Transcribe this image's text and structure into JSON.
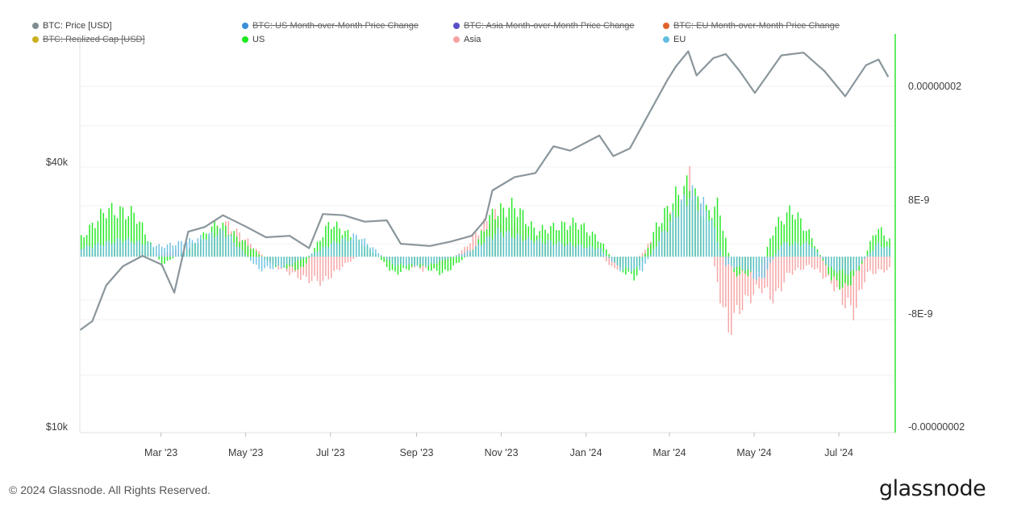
{
  "legend": [
    {
      "label": "BTC: Price [USD]",
      "color": "#7f8c91",
      "enabled": true
    },
    {
      "label": "BTC: US Month-over-Month Price Change",
      "color": "#3b8fd8",
      "enabled": false
    },
    {
      "label": "BTC: Asia Month-over-Month Price Change",
      "color": "#5a4fc4",
      "enabled": false
    },
    {
      "label": "BTC: EU Month-over-Month Price Change",
      "color": "#e0622a",
      "enabled": false
    },
    {
      "label": "BTC: Realized Cap [USD]",
      "color": "#c9b01e",
      "enabled": false
    },
    {
      "label": "US",
      "color": "#1ee81e",
      "enabled": true
    },
    {
      "label": "Asia",
      "color": "#f7a1a1",
      "enabled": true
    },
    {
      "label": "EU",
      "color": "#63bde0",
      "enabled": true
    }
  ],
  "footer": {
    "copyright": "© 2024 Glassnode. All Rights Reserved.",
    "logo": "glassnode"
  },
  "chart_data": {
    "type": "bar",
    "title": "",
    "x_axis": {
      "tick_labels": [
        "Mar '23",
        "May '23",
        "Jul '23",
        "Sep '23",
        "Nov '23",
        "Jan '24",
        "Mar '24",
        "May '24",
        "Jul '24"
      ],
      "range": [
        "2023-01-01",
        "2024-08-10"
      ]
    },
    "y_left": {
      "label": "",
      "scale": "log",
      "tick_labels": [
        "$40k",
        "$10k"
      ],
      "range": [
        10000,
        80000
      ]
    },
    "y_right": {
      "label": "",
      "tick_labels": [
        "0.00000002",
        "8E-9",
        "-8E-9",
        "-0.00000002"
      ],
      "range": [
        -2e-08,
        2.5e-08
      ]
    },
    "grid": true,
    "legend_position": "top",
    "price_series": {
      "name": "BTC: Price [USD]",
      "color": "#8a969c",
      "points": [
        [
          "2023-01-01",
          16600
        ],
        [
          "2023-01-10",
          17400
        ],
        [
          "2023-01-20",
          21000
        ],
        [
          "2023-02-01",
          23200
        ],
        [
          "2023-02-15",
          24500
        ],
        [
          "2023-03-01",
          23400
        ],
        [
          "2023-03-10",
          20200
        ],
        [
          "2023-03-20",
          27800
        ],
        [
          "2023-04-01",
          28500
        ],
        [
          "2023-04-14",
          30300
        ],
        [
          "2023-05-01",
          28500
        ],
        [
          "2023-05-15",
          27000
        ],
        [
          "2023-06-01",
          27200
        ],
        [
          "2023-06-15",
          25500
        ],
        [
          "2023-06-25",
          30500
        ],
        [
          "2023-07-10",
          30300
        ],
        [
          "2023-07-25",
          29300
        ],
        [
          "2023-08-10",
          29500
        ],
        [
          "2023-08-20",
          26100
        ],
        [
          "2023-09-10",
          25800
        ],
        [
          "2023-09-25",
          26400
        ],
        [
          "2023-10-10",
          27200
        ],
        [
          "2023-10-20",
          29600
        ],
        [
          "2023-10-25",
          34500
        ],
        [
          "2023-11-10",
          37000
        ],
        [
          "2023-11-25",
          37800
        ],
        [
          "2023-12-08",
          43500
        ],
        [
          "2023-12-20",
          42500
        ],
        [
          "2024-01-10",
          46000
        ],
        [
          "2024-01-20",
          41300
        ],
        [
          "2024-02-01",
          43000
        ],
        [
          "2024-02-15",
          51800
        ],
        [
          "2024-02-28",
          61500
        ],
        [
          "2024-03-05",
          66000
        ],
        [
          "2024-03-14",
          71500
        ],
        [
          "2024-03-20",
          63000
        ],
        [
          "2024-04-01",
          69000
        ],
        [
          "2024-04-10",
          70500
        ],
        [
          "2024-04-20",
          64500
        ],
        [
          "2024-05-01",
          57500
        ],
        [
          "2024-05-20",
          70000
        ],
        [
          "2024-06-05",
          71000
        ],
        [
          "2024-06-20",
          64500
        ],
        [
          "2024-07-05",
          56500
        ],
        [
          "2024-07-20",
          66500
        ],
        [
          "2024-07-29",
          68500
        ],
        [
          "2024-08-05",
          62500
        ]
      ]
    },
    "bar_series": [
      {
        "name": "US",
        "color": "#1ee81e",
        "note": "month-over-month change, right axis"
      },
      {
        "name": "Asia",
        "color": "#f7a1a1",
        "note": "month-over-month change, right axis"
      },
      {
        "name": "EU",
        "color": "#63bde0",
        "note": "month-over-month change, right axis"
      }
    ],
    "bar_anchors": {
      "US": [
        [
          "2023-01-01",
          2e-09
        ],
        [
          "2023-01-20",
          5.5e-09
        ],
        [
          "2023-02-10",
          5e-09
        ],
        [
          "2023-03-01",
          -1e-09
        ],
        [
          "2023-03-25",
          1.5e-09
        ],
        [
          "2023-04-10",
          4e-09
        ],
        [
          "2023-05-01",
          1.5e-09
        ],
        [
          "2023-05-20",
          -1e-09
        ],
        [
          "2023-06-10",
          -1.5e-09
        ],
        [
          "2023-06-30",
          4e-09
        ],
        [
          "2023-07-15",
          2.5e-09
        ],
        [
          "2023-08-01",
          5e-10
        ],
        [
          "2023-08-15",
          -2e-09
        ],
        [
          "2023-09-01",
          -1e-09
        ],
        [
          "2023-09-20",
          -2e-09
        ],
        [
          "2023-10-10",
          5e-10
        ],
        [
          "2023-10-25",
          5e-09
        ],
        [
          "2023-11-10",
          6e-09
        ],
        [
          "2023-11-25",
          3e-09
        ],
        [
          "2023-12-10",
          3.5e-09
        ],
        [
          "2023-12-25",
          4e-09
        ],
        [
          "2024-01-10",
          2e-09
        ],
        [
          "2024-01-25",
          -1.5e-09
        ],
        [
          "2024-02-05",
          -2.5e-09
        ],
        [
          "2024-02-20",
          3.5e-09
        ],
        [
          "2024-03-05",
          7e-09
        ],
        [
          "2024-03-15",
          8.5e-09
        ],
        [
          "2024-03-25",
          5e-09
        ],
        [
          "2024-04-05",
          6e-09
        ],
        [
          "2024-04-15",
          -2e-09
        ],
        [
          "2024-04-25",
          -2e-09
        ],
        [
          "2024-05-05",
          -1.5e-09
        ],
        [
          "2024-05-15",
          3.5e-09
        ],
        [
          "2024-05-28",
          5.5e-09
        ],
        [
          "2024-06-10",
          2.5e-09
        ],
        [
          "2024-06-25",
          -2.5e-09
        ],
        [
          "2024-07-05",
          -3.8e-09
        ],
        [
          "2024-07-15",
          -1.5e-09
        ],
        [
          "2024-07-28",
          3.5e-09
        ],
        [
          "2024-08-05",
          2e-09
        ]
      ],
      "Asia": [
        [
          "2023-01-01",
          0
        ],
        [
          "2023-02-01",
          1e-09
        ],
        [
          "2023-03-01",
          3e-10
        ],
        [
          "2023-04-01",
          1.5e-09
        ],
        [
          "2023-04-15",
          4e-09
        ],
        [
          "2023-05-01",
          2e-09
        ],
        [
          "2023-05-20",
          -1e-09
        ],
        [
          "2023-06-10",
          -2.5e-09
        ],
        [
          "2023-06-25",
          -3e-09
        ],
        [
          "2023-07-10",
          -1e-09
        ],
        [
          "2023-07-25",
          5e-10
        ],
        [
          "2023-08-15",
          -5e-10
        ],
        [
          "2023-09-05",
          -1.5e-09
        ],
        [
          "2023-09-20",
          -1e-09
        ],
        [
          "2023-10-05",
          1e-09
        ],
        [
          "2023-10-25",
          5e-09
        ],
        [
          "2023-11-10",
          3.5e-09
        ],
        [
          "2023-12-01",
          1.5e-09
        ],
        [
          "2023-12-20",
          1.5e-09
        ],
        [
          "2024-01-10",
          5e-10
        ],
        [
          "2024-01-20",
          -1.5e-09
        ],
        [
          "2024-02-05",
          -5e-10
        ],
        [
          "2024-02-20",
          2.5e-09
        ],
        [
          "2024-03-10",
          6.5e-09
        ],
        [
          "2024-03-15",
          9e-09
        ],
        [
          "2024-03-28",
          3e-09
        ],
        [
          "2024-04-05",
          -4e-09
        ],
        [
          "2024-04-12",
          -8.5e-09
        ],
        [
          "2024-04-20",
          -6e-09
        ],
        [
          "2024-05-05",
          -3.5e-09
        ],
        [
          "2024-05-15",
          -5e-09
        ],
        [
          "2024-05-25",
          -2e-09
        ],
        [
          "2024-06-10",
          -1e-09
        ],
        [
          "2024-06-25",
          -3e-09
        ],
        [
          "2024-07-05",
          -5.5e-09
        ],
        [
          "2024-07-12",
          -6.5e-09
        ],
        [
          "2024-07-20",
          -2e-09
        ],
        [
          "2024-08-05",
          -1.5e-09
        ]
      ],
      "EU": [
        [
          "2023-01-01",
          1e-09
        ],
        [
          "2023-02-01",
          2e-09
        ],
        [
          "2023-03-01",
          1.2e-09
        ],
        [
          "2023-03-25",
          2e-09
        ],
        [
          "2023-04-15",
          3e-09
        ],
        [
          "2023-05-10",
          -1.5e-09
        ],
        [
          "2023-06-01",
          -1e-09
        ],
        [
          "2023-07-01",
          1.5e-09
        ],
        [
          "2023-07-20",
          2.5e-09
        ],
        [
          "2023-08-15",
          -1e-09
        ],
        [
          "2023-09-10",
          -1e-09
        ],
        [
          "2023-10-10",
          8e-10
        ],
        [
          "2023-10-30",
          3e-09
        ],
        [
          "2023-11-20",
          2e-09
        ],
        [
          "2023-12-15",
          1.5e-09
        ],
        [
          "2024-01-10",
          1e-09
        ],
        [
          "2024-01-25",
          -1.5e-09
        ],
        [
          "2024-02-10",
          -1.5e-09
        ],
        [
          "2024-02-25",
          2.8e-09
        ],
        [
          "2024-03-15",
          7.5e-09
        ],
        [
          "2024-03-28",
          5.5e-09
        ],
        [
          "2024-04-10",
          -1e-09
        ],
        [
          "2024-04-25",
          -1.5e-09
        ],
        [
          "2024-05-05",
          -3e-09
        ],
        [
          "2024-05-20",
          1.5e-09
        ],
        [
          "2024-06-10",
          1.5e-09
        ],
        [
          "2024-06-25",
          -1.5e-09
        ],
        [
          "2024-07-10",
          -2e-09
        ],
        [
          "2024-07-28",
          1.5e-09
        ],
        [
          "2024-08-05",
          1e-09
        ]
      ]
    }
  }
}
